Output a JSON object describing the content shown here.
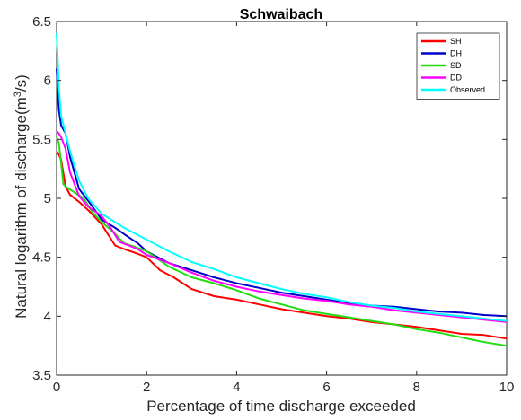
{
  "chart_data": {
    "type": "line",
    "title": "Schwaibach",
    "xlabel": "Percentage of time discharge exceeded",
    "ylabel_main": "Natural logarithm of discharge(m",
    "ylabel_sup": "3",
    "ylabel_end": "/s)",
    "xlim": [
      0,
      10
    ],
    "ylim": [
      3.5,
      6.5
    ],
    "x_ticks": [
      0,
      2,
      4,
      6,
      8,
      10
    ],
    "y_ticks": [
      3.5,
      4,
      4.5,
      5,
      5.5,
      6,
      6.5
    ],
    "grid": false,
    "legend_position": "top-right",
    "series": [
      {
        "name": "SH",
        "color": "#ff0000",
        "x": [
          0,
          0.05,
          0.1,
          0.2,
          0.3,
          0.5,
          0.7,
          1.0,
          1.3,
          1.5,
          1.8,
          2.0,
          2.3,
          2.6,
          3.0,
          3.5,
          4.0,
          4.5,
          5.0,
          5.5,
          6.0,
          6.5,
          7.0,
          7.5,
          8.0,
          8.5,
          9.0,
          9.5,
          10.0
        ],
        "y": [
          5.4,
          5.37,
          5.33,
          5.1,
          5.03,
          4.97,
          4.9,
          4.78,
          4.6,
          4.57,
          4.53,
          4.5,
          4.39,
          4.33,
          4.23,
          4.17,
          4.14,
          4.1,
          4.06,
          4.03,
          4.0,
          3.98,
          3.95,
          3.93,
          3.91,
          3.88,
          3.85,
          3.84,
          3.81
        ]
      },
      {
        "name": "DH",
        "color": "#0000cc",
        "x": [
          0,
          0.05,
          0.1,
          0.2,
          0.3,
          0.5,
          0.7,
          1.0,
          1.3,
          1.6,
          1.8,
          2.0,
          2.5,
          3.0,
          3.5,
          4.0,
          4.5,
          5.0,
          5.5,
          6.0,
          6.5,
          7.0,
          7.5,
          8.0,
          8.5,
          9.0,
          9.5,
          10.0
        ],
        "y": [
          6.1,
          5.75,
          5.62,
          5.55,
          5.35,
          5.08,
          4.98,
          4.82,
          4.75,
          4.67,
          4.62,
          4.55,
          4.45,
          4.39,
          4.33,
          4.28,
          4.24,
          4.2,
          4.17,
          4.14,
          4.11,
          4.09,
          4.08,
          4.06,
          4.04,
          4.03,
          4.01,
          4.0
        ]
      },
      {
        "name": "SD",
        "color": "#22dd11",
        "x": [
          0,
          0.05,
          0.1,
          0.15,
          0.2,
          0.4,
          0.6,
          0.8,
          1.0,
          1.3,
          1.5,
          1.8,
          2.0,
          2.5,
          3.0,
          3.5,
          4.0,
          4.5,
          5.0,
          5.5,
          6.0,
          6.5,
          7.0,
          7.5,
          8.0,
          8.5,
          9.0,
          9.5,
          10.0
        ],
        "y": [
          5.52,
          5.47,
          5.3,
          5.12,
          5.1,
          5.05,
          5.0,
          4.88,
          4.8,
          4.7,
          4.62,
          4.58,
          4.55,
          4.42,
          4.33,
          4.28,
          4.22,
          4.15,
          4.1,
          4.05,
          4.02,
          3.99,
          3.96,
          3.93,
          3.89,
          3.86,
          3.82,
          3.78,
          3.75
        ]
      },
      {
        "name": "DD",
        "color": "#ff00ff",
        "x": [
          0,
          0.05,
          0.1,
          0.2,
          0.3,
          0.5,
          0.7,
          1.0,
          1.2,
          1.4,
          1.6,
          1.8,
          2.0,
          2.5,
          3.0,
          3.5,
          4.0,
          4.5,
          5.0,
          5.5,
          6.0,
          6.5,
          7.0,
          7.5,
          8.0,
          8.5,
          9.0,
          9.5,
          10.0
        ],
        "y": [
          5.57,
          5.55,
          5.52,
          5.42,
          5.22,
          5.02,
          4.93,
          4.85,
          4.75,
          4.63,
          4.6,
          4.57,
          4.52,
          4.45,
          4.37,
          4.3,
          4.25,
          4.21,
          4.18,
          4.15,
          4.13,
          4.1,
          4.08,
          4.05,
          4.03,
          4.01,
          3.99,
          3.97,
          3.95
        ]
      },
      {
        "name": "Observed",
        "color": "#00ffff",
        "x": [
          0,
          0.05,
          0.1,
          0.2,
          0.3,
          0.5,
          0.7,
          1.0,
          1.5,
          2.0,
          2.5,
          3.0,
          3.5,
          4.0,
          4.5,
          5.0,
          5.5,
          6.0,
          6.5,
          7.0,
          7.5,
          8.0,
          8.5,
          9.0,
          9.5,
          10.0
        ],
        "y": [
          6.4,
          5.95,
          5.7,
          5.55,
          5.4,
          5.15,
          5.0,
          4.87,
          4.75,
          4.65,
          4.55,
          4.46,
          4.4,
          4.33,
          4.28,
          4.23,
          4.19,
          4.16,
          4.12,
          4.09,
          4.07,
          4.04,
          4.02,
          4.0,
          3.98,
          3.96
        ]
      }
    ]
  }
}
